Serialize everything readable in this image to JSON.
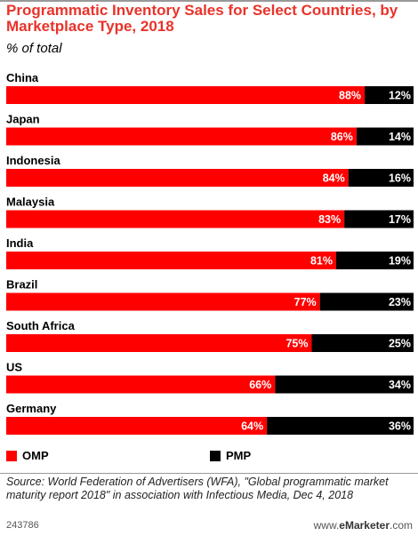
{
  "header": {
    "title": "Programmatic Inventory Sales for Select Countries, by Marketplace Type, 2018",
    "subtitle": "% of total"
  },
  "colors": {
    "omp": "#ff0000",
    "pmp": "#000000",
    "title": "#e8332a"
  },
  "legend": {
    "omp_label": "OMP",
    "pmp_label": "PMP"
  },
  "footer": {
    "source": "Source: World Federation of Advertisers (WFA), \"Global programmatic market maturity report 2018\" in association with Infectious Media, Dec 4, 2018",
    "chart_id": "243786",
    "brand_prefix": "www.",
    "brand_name": "eMarketer",
    "brand_suffix": ".com"
  },
  "chart_data": {
    "type": "bar",
    "stacked": true,
    "orientation": "horizontal",
    "title": "Programmatic Inventory Sales for Select Countries, by Marketplace Type, 2018",
    "subtitle": "% of total",
    "unit": "%",
    "categories": [
      "China",
      "Japan",
      "Indonesia",
      "Malaysia",
      "India",
      "Brazil",
      "South Africa",
      "US",
      "Germany"
    ],
    "series": [
      {
        "name": "OMP",
        "values": [
          88,
          86,
          84,
          83,
          81,
          77,
          75,
          66,
          64
        ]
      },
      {
        "name": "PMP",
        "values": [
          12,
          14,
          16,
          17,
          19,
          23,
          25,
          34,
          36
        ]
      }
    ],
    "xlim": [
      0,
      100
    ],
    "legend_position": "bottom-left"
  }
}
